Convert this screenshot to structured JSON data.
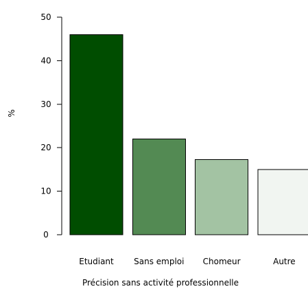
{
  "chart_data": {
    "type": "bar",
    "categories": [
      "Etudiant",
      "Sans emploi",
      "Chomeur",
      "Autre"
    ],
    "values": [
      46,
      22,
      17.3,
      15
    ],
    "colors": [
      "#004d00",
      "#538a53",
      "#a3c3a3",
      "#f1f5f1"
    ],
    "ylim": [
      0,
      50
    ],
    "y_ticks": [
      0,
      10,
      20,
      30,
      40,
      50
    ],
    "xlabel": "Précision sans activité professionnelle",
    "ylabel": "%",
    "grid": false
  }
}
